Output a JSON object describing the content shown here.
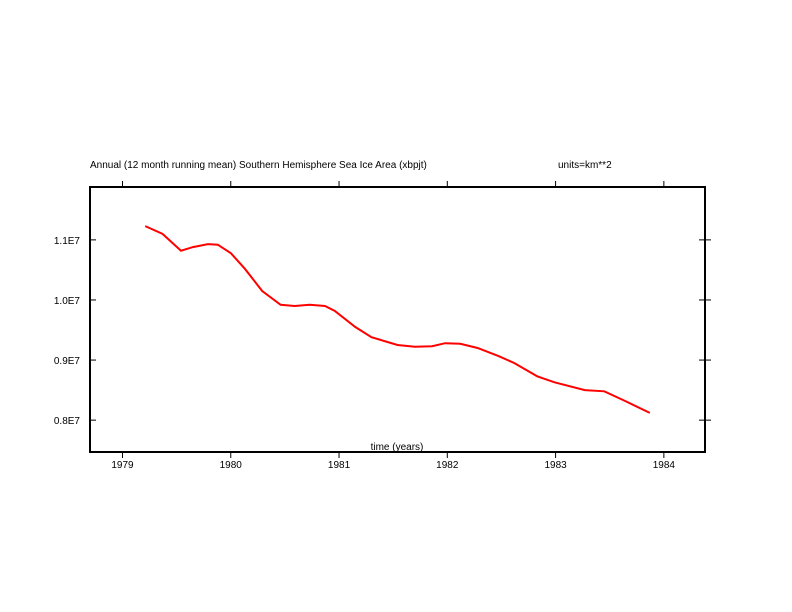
{
  "chart_data": {
    "type": "line",
    "title": "Annual (12 month running mean) Southern Hemisphere Sea Ice Area (xbpjt)",
    "units_label": "units=km**2",
    "xlabel": "time (years)",
    "ylabel": "",
    "xlim": [
      1978.7,
      1984.38
    ],
    "ylim": [
      7470000.0,
      11880000.0
    ],
    "x_ticks": [
      1979,
      1980,
      1981,
      1982,
      1983,
      1984
    ],
    "x_tick_labels": [
      "1979",
      "1980",
      "1981",
      "1982",
      "1983",
      "1984"
    ],
    "y_ticks": [
      8000000,
      9000000,
      10000000,
      11000000
    ],
    "y_tick_labels": [
      "0.8E7",
      "0.9E7",
      "1.0E7",
      "1.1E7"
    ],
    "grid": false,
    "series": [
      {
        "name": "Southern Hemisphere Sea Ice Area",
        "color": "#ff0000",
        "x": [
          1979.21,
          1979.37,
          1979.54,
          1979.65,
          1979.79,
          1979.88,
          1980.0,
          1980.13,
          1980.29,
          1980.46,
          1980.59,
          1980.73,
          1980.87,
          1980.96,
          1981.15,
          1981.3,
          1981.54,
          1981.7,
          1981.86,
          1981.98,
          1982.12,
          1982.28,
          1982.47,
          1982.62,
          1982.83,
          1982.99,
          1983.27,
          1983.45,
          1983.64,
          1983.87
        ],
        "y": [
          11230000,
          11100000,
          10820000,
          10880000,
          10930000,
          10920000,
          10780000,
          10520000,
          10150000,
          9920000,
          9900000,
          9920000,
          9900000,
          9820000,
          9550000,
          9380000,
          9250000,
          9220000,
          9230000,
          9280000,
          9270000,
          9200000,
          9070000,
          8950000,
          8730000,
          8630000,
          8500000,
          8480000,
          8320000,
          8120000
        ]
      }
    ]
  }
}
